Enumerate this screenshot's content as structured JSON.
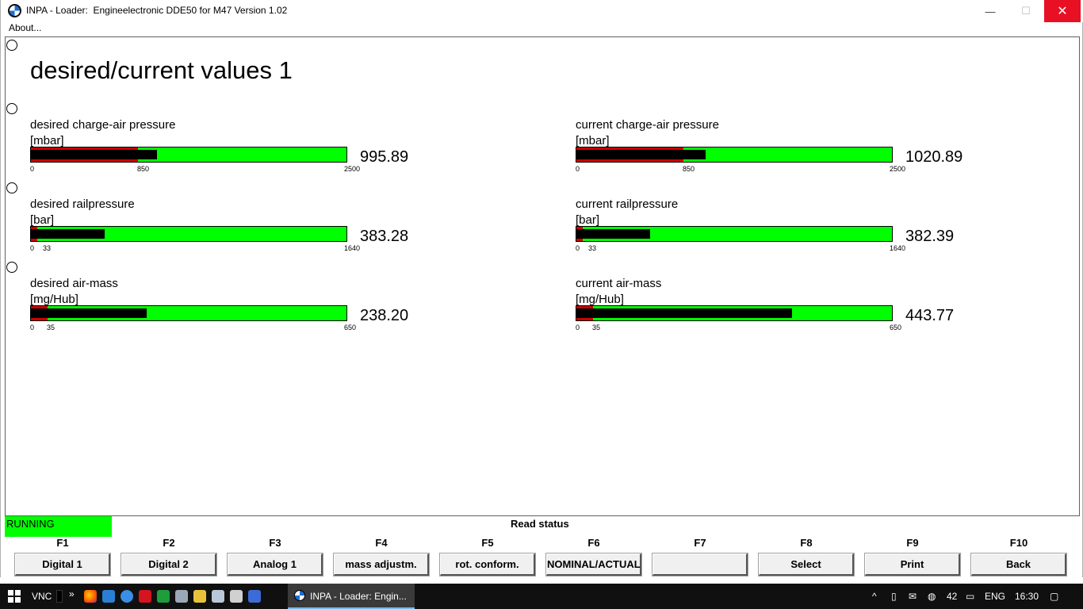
{
  "window": {
    "title": "INPA - Loader:  Engineelectronic DDE50 for M47 Version 1.02",
    "minimize": "—",
    "maximize": "☐",
    "close": "✕"
  },
  "menu": {
    "about": "About..."
  },
  "page": {
    "heading": "desired/current values 1"
  },
  "gauges": [
    {
      "label": "desired charge-air pressure",
      "unit": "[mbar]",
      "value": "995.89",
      "value_num": 995.89,
      "min": 0,
      "mark": 850,
      "max": 2500,
      "tick_min": "0",
      "tick_mark": "850",
      "tick_max": "2500"
    },
    {
      "label": "current charge-air pressure",
      "unit": "[mbar]",
      "value": "1020.89",
      "value_num": 1020.89,
      "min": 0,
      "mark": 850,
      "max": 2500,
      "tick_min": "0",
      "tick_mark": "850",
      "tick_max": "2500"
    },
    {
      "label": "desired railpressure",
      "unit": "[bar]",
      "value": "383.28",
      "value_num": 383.28,
      "min": 0,
      "mark": 33,
      "max": 1640,
      "tick_min": "0",
      "tick_mark": "33",
      "tick_max": "1640"
    },
    {
      "label": "current railpressure",
      "unit": "[bar]",
      "value": "382.39",
      "value_num": 382.39,
      "min": 0,
      "mark": 33,
      "max": 1640,
      "tick_min": "0",
      "tick_mark": "33",
      "tick_max": "1640"
    },
    {
      "label": "desired air-mass",
      "unit": "[mg/Hub]",
      "value": "238.20",
      "value_num": 238.2,
      "min": 0,
      "mark": 35,
      "max": 650,
      "tick_min": "0",
      "tick_mark": "35",
      "tick_max": "650"
    },
    {
      "label": "current air-mass",
      "unit": "[mg/Hub]",
      "value": "443.77",
      "value_num": 443.77,
      "min": 0,
      "mark": 35,
      "max": 650,
      "tick_min": "0",
      "tick_mark": "35",
      "tick_max": "650"
    }
  ],
  "status": {
    "running": "RUNNING",
    "text": "Read status",
    "running_color": "#00ff00"
  },
  "fkeys": [
    {
      "key": "F1",
      "label": "Digital 1"
    },
    {
      "key": "F2",
      "label": "Digital 2"
    },
    {
      "key": "F3",
      "label": "Analog 1"
    },
    {
      "key": "F4",
      "label": "mass adjustm."
    },
    {
      "key": "F5",
      "label": "rot. conform."
    },
    {
      "key": "F6",
      "label": "NOMINAL/ACTUAL"
    },
    {
      "key": "F7",
      "label": ""
    },
    {
      "key": "F8",
      "label": "Select"
    },
    {
      "key": "F9",
      "label": "Print"
    },
    {
      "key": "F10",
      "label": "Back"
    }
  ],
  "taskbar": {
    "vnc": "VNC",
    "chevron": "»",
    "active_window": "INPA - Loader:  Engin...",
    "tray_caret": "^",
    "tray_num": "42",
    "language": "ENG",
    "time": "16:30",
    "icons": [
      "firefox-icon",
      "app-icon",
      "browser-icon",
      "acrobat-icon",
      "game-icon",
      "monitor-icon",
      "pen-icon",
      "files-icon",
      "calculator-icon",
      "floppy-icon"
    ]
  },
  "colors": {
    "bar_green": "#00ff00",
    "bar_red": "#cc0000",
    "close_red": "#e81123"
  }
}
